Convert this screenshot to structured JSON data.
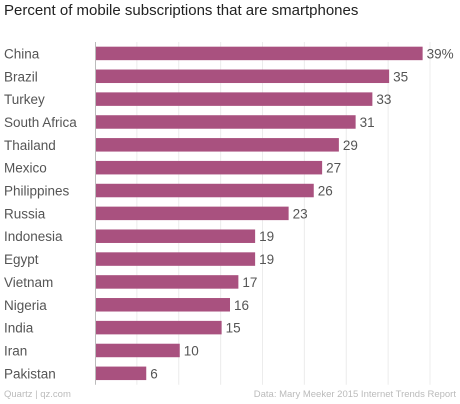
{
  "chart_data": {
    "type": "bar",
    "orientation": "horizontal",
    "title": "Percent of mobile subscriptions that are smartphones",
    "xlabel": "",
    "ylabel": "",
    "categories": [
      "China",
      "Brazil",
      "Turkey",
      "South Africa",
      "Thailand",
      "Mexico",
      "Philippines",
      "Russia",
      "Indonesia",
      "Egypt",
      "Vietnam",
      "Nigeria",
      "India",
      "Iran",
      "Pakistan"
    ],
    "values": [
      39,
      35,
      33,
      31,
      29,
      27,
      26,
      23,
      19,
      19,
      17,
      16,
      15,
      10,
      6
    ],
    "value_labels": [
      "39%",
      "35",
      "33",
      "31",
      "29",
      "27",
      "26",
      "23",
      "19",
      "19",
      "17",
      "16",
      "15",
      "10",
      "6"
    ],
    "xlim": [
      0,
      40
    ],
    "grid": true,
    "bar_color": "#a9517f"
  },
  "footer": {
    "source": "Quartz | qz.com",
    "credit": "Data: Mary Meeker 2015 Internet Trends Report"
  }
}
